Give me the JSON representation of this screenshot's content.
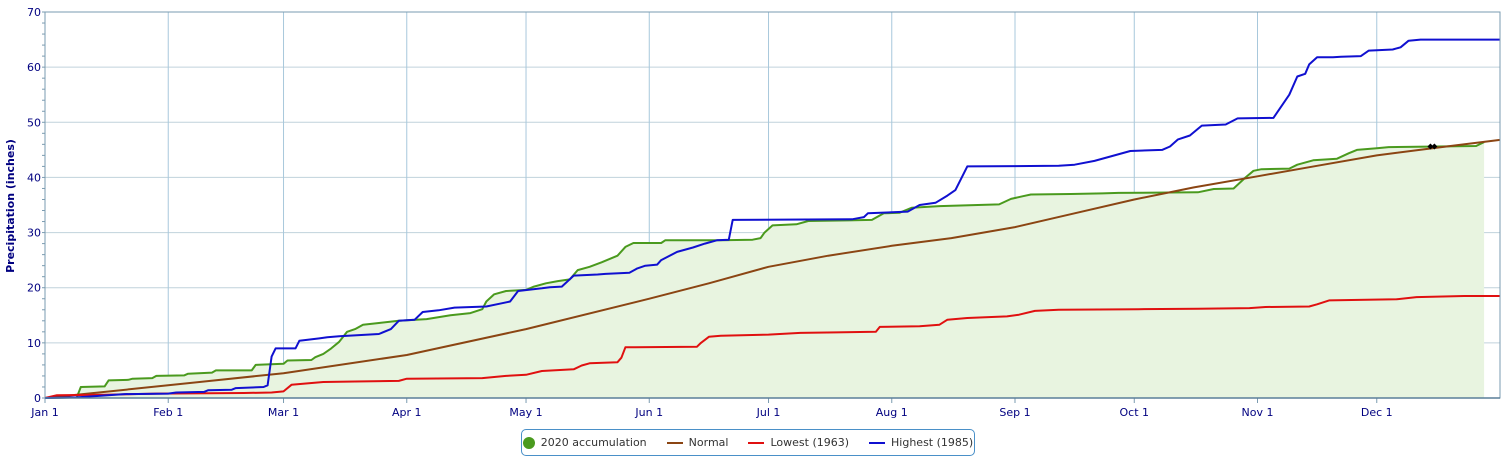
{
  "chart_data": {
    "type": "line",
    "title": "",
    "ylabel": "Precipitation (inches)",
    "xlabel": "",
    "ylim": [
      0,
      70
    ],
    "yticks": [
      0,
      10,
      20,
      30,
      40,
      50,
      60,
      70
    ],
    "x_day_range": [
      0,
      366
    ],
    "xticks": [
      {
        "label": "Jan 1",
        "day": 0
      },
      {
        "label": "Feb 1",
        "day": 31
      },
      {
        "label": "Mar 1",
        "day": 60
      },
      {
        "label": "Apr 1",
        "day": 91
      },
      {
        "label": "May 1",
        "day": 121
      },
      {
        "label": "Jun 1",
        "day": 152
      },
      {
        "label": "Jul 1",
        "day": 182
      },
      {
        "label": "Aug 1",
        "day": 213
      },
      {
        "label": "Sep 1",
        "day": 244
      },
      {
        "label": "Oct 1",
        "day": 274
      },
      {
        "label": "Nov 1",
        "day": 305
      },
      {
        "label": "Dec 1",
        "day": 335
      }
    ],
    "grid": true,
    "legend_position": "bottom-center",
    "series": [
      {
        "name": "2020 accumulation",
        "color": "#4a9a1e",
        "fill": "#e8f4e0",
        "marker": "dot",
        "points": [
          [
            0,
            0
          ],
          [
            8,
            0.1
          ],
          [
            9,
            2.0
          ],
          [
            15,
            2.1
          ],
          [
            16,
            3.2
          ],
          [
            21,
            3.3
          ],
          [
            22,
            3.5
          ],
          [
            27,
            3.6
          ],
          [
            28,
            4.0
          ],
          [
            35,
            4.1
          ],
          [
            36,
            4.4
          ],
          [
            42,
            4.6
          ],
          [
            43,
            5.0
          ],
          [
            52,
            5.0
          ],
          [
            53,
            6.0
          ],
          [
            60,
            6.2
          ],
          [
            61,
            6.8
          ],
          [
            67,
            6.9
          ],
          [
            68,
            7.4
          ],
          [
            70,
            8.0
          ],
          [
            72,
            9.0
          ],
          [
            74,
            10.2
          ],
          [
            76,
            12.0
          ],
          [
            78,
            12.5
          ],
          [
            80,
            13.3
          ],
          [
            84,
            13.6
          ],
          [
            89,
            14.0
          ],
          [
            96,
            14.3
          ],
          [
            102,
            15.0
          ],
          [
            107,
            15.4
          ],
          [
            110,
            16.1
          ],
          [
            111,
            17.5
          ],
          [
            113,
            18.8
          ],
          [
            116,
            19.4
          ],
          [
            121,
            19.6
          ],
          [
            123,
            20.2
          ],
          [
            126,
            20.8
          ],
          [
            129,
            21.2
          ],
          [
            132,
            21.5
          ],
          [
            134,
            23.2
          ],
          [
            137,
            23.8
          ],
          [
            140,
            24.6
          ],
          [
            144,
            25.8
          ],
          [
            146,
            27.4
          ],
          [
            148,
            28.1
          ],
          [
            155,
            28.1
          ],
          [
            156,
            28.6
          ],
          [
            170,
            28.6
          ],
          [
            178,
            28.7
          ],
          [
            180,
            29.0
          ],
          [
            181,
            30.0
          ],
          [
            183,
            31.3
          ],
          [
            189,
            31.5
          ],
          [
            192,
            32.1
          ],
          [
            202,
            32.2
          ],
          [
            208,
            32.3
          ],
          [
            211,
            33.5
          ],
          [
            215,
            33.6
          ],
          [
            218,
            34.5
          ],
          [
            225,
            34.8
          ],
          [
            240,
            35.1
          ],
          [
            243,
            36.1
          ],
          [
            246,
            36.6
          ],
          [
            248,
            36.9
          ],
          [
            258,
            37.0
          ],
          [
            266,
            37.1
          ],
          [
            270,
            37.2
          ],
          [
            290,
            37.3
          ],
          [
            294,
            37.9
          ],
          [
            299,
            38.0
          ],
          [
            302,
            40.0
          ],
          [
            304,
            41.2
          ],
          [
            306,
            41.5
          ],
          [
            313,
            41.6
          ],
          [
            315,
            42.3
          ],
          [
            319,
            43.1
          ],
          [
            325,
            43.4
          ],
          [
            328,
            44.4
          ],
          [
            330,
            45.0
          ],
          [
            335,
            45.3
          ],
          [
            338,
            45.5
          ],
          [
            360,
            45.7
          ],
          [
            362,
            46.4
          ]
        ]
      },
      {
        "name": "Normal",
        "color": "#8b4513",
        "marker": "line",
        "points": [
          [
            0,
            0
          ],
          [
            31,
            2.3
          ],
          [
            60,
            4.5
          ],
          [
            91,
            7.8
          ],
          [
            121,
            12.5
          ],
          [
            152,
            18.0
          ],
          [
            167,
            20.8
          ],
          [
            182,
            23.8
          ],
          [
            197,
            25.8
          ],
          [
            213,
            27.6
          ],
          [
            228,
            29.0
          ],
          [
            244,
            31.0
          ],
          [
            259,
            33.5
          ],
          [
            274,
            36.0
          ],
          [
            289,
            38.2
          ],
          [
            305,
            40.2
          ],
          [
            320,
            42.1
          ],
          [
            335,
            44.0
          ],
          [
            350,
            45.4
          ],
          [
            366,
            46.8
          ]
        ]
      },
      {
        "name": "Lowest (1963)",
        "color": "#e01010",
        "marker": "line",
        "points": [
          [
            0,
            0
          ],
          [
            3,
            0.5
          ],
          [
            15,
            0.6
          ],
          [
            28,
            0.8
          ],
          [
            50,
            0.9
          ],
          [
            57,
            1.0
          ],
          [
            60,
            1.2
          ],
          [
            62,
            2.4
          ],
          [
            70,
            2.9
          ],
          [
            78,
            3.0
          ],
          [
            89,
            3.1
          ],
          [
            91,
            3.5
          ],
          [
            110,
            3.6
          ],
          [
            116,
            4.0
          ],
          [
            121,
            4.2
          ],
          [
            125,
            4.9
          ],
          [
            133,
            5.2
          ],
          [
            135,
            5.9
          ],
          [
            137,
            6.3
          ],
          [
            144,
            6.5
          ],
          [
            145,
            7.3
          ],
          [
            146,
            9.2
          ],
          [
            164,
            9.3
          ],
          [
            165,
            10.0
          ],
          [
            167,
            11.1
          ],
          [
            170,
            11.3
          ],
          [
            182,
            11.5
          ],
          [
            190,
            11.8
          ],
          [
            199,
            11.9
          ],
          [
            209,
            12.0
          ],
          [
            210,
            12.9
          ],
          [
            220,
            13.0
          ],
          [
            225,
            13.3
          ],
          [
            227,
            14.2
          ],
          [
            232,
            14.5
          ],
          [
            242,
            14.8
          ],
          [
            245,
            15.1
          ],
          [
            249,
            15.8
          ],
          [
            255,
            16.0
          ],
          [
            275,
            16.1
          ],
          [
            290,
            16.2
          ],
          [
            303,
            16.3
          ],
          [
            307,
            16.5
          ],
          [
            318,
            16.6
          ],
          [
            320,
            17.0
          ],
          [
            323,
            17.7
          ],
          [
            340,
            17.9
          ],
          [
            345,
            18.3
          ],
          [
            357,
            18.5
          ],
          [
            366,
            18.5
          ]
        ]
      },
      {
        "name": "Highest (1985)",
        "color": "#1010d0",
        "marker": "line",
        "points": [
          [
            0,
            0
          ],
          [
            8,
            0.1
          ],
          [
            20,
            0.7
          ],
          [
            31,
            0.8
          ],
          [
            33,
            1.0
          ],
          [
            40,
            1.1
          ],
          [
            41,
            1.4
          ],
          [
            47,
            1.5
          ],
          [
            48,
            1.8
          ],
          [
            55,
            2.0
          ],
          [
            56,
            2.3
          ],
          [
            57,
            7.5
          ],
          [
            58,
            9.0
          ],
          [
            60,
            9.0
          ],
          [
            63,
            9.0
          ],
          [
            64,
            10.4
          ],
          [
            69,
            10.8
          ],
          [
            71,
            11.0
          ],
          [
            74,
            11.2
          ],
          [
            84,
            11.6
          ],
          [
            87,
            12.5
          ],
          [
            89,
            14.0
          ],
          [
            93,
            14.2
          ],
          [
            95,
            15.6
          ],
          [
            99,
            15.9
          ],
          [
            103,
            16.4
          ],
          [
            111,
            16.6
          ],
          [
            115,
            17.2
          ],
          [
            117,
            17.5
          ],
          [
            119,
            19.4
          ],
          [
            125,
            19.9
          ],
          [
            127,
            20.1
          ],
          [
            130,
            20.2
          ],
          [
            133,
            22.2
          ],
          [
            139,
            22.4
          ],
          [
            141,
            22.5
          ],
          [
            147,
            22.7
          ],
          [
            149,
            23.5
          ],
          [
            151,
            24.0
          ],
          [
            154,
            24.2
          ],
          [
            155,
            25.0
          ],
          [
            159,
            26.5
          ],
          [
            163,
            27.3
          ],
          [
            166,
            28.0
          ],
          [
            169,
            28.6
          ],
          [
            172,
            28.7
          ],
          [
            173,
            32.3
          ],
          [
            203,
            32.4
          ],
          [
            206,
            32.8
          ],
          [
            207,
            33.5
          ],
          [
            217,
            33.8
          ],
          [
            220,
            35.0
          ],
          [
            224,
            35.4
          ],
          [
            227,
            36.7
          ],
          [
            229,
            37.7
          ],
          [
            232,
            42.0
          ],
          [
            255,
            42.1
          ],
          [
            259,
            42.3
          ],
          [
            264,
            43.0
          ],
          [
            268,
            43.8
          ],
          [
            273,
            44.8
          ],
          [
            281,
            45.0
          ],
          [
            283,
            45.6
          ],
          [
            285,
            46.9
          ],
          [
            288,
            47.6
          ],
          [
            291,
            49.4
          ],
          [
            297,
            49.6
          ],
          [
            300,
            50.7
          ],
          [
            309,
            50.8
          ],
          [
            313,
            55.0
          ],
          [
            315,
            58.3
          ],
          [
            317,
            58.8
          ],
          [
            318,
            60.5
          ],
          [
            320,
            61.8
          ],
          [
            324,
            61.8
          ],
          [
            326,
            61.9
          ],
          [
            331,
            62.0
          ],
          [
            333,
            63.0
          ],
          [
            339,
            63.2
          ],
          [
            341,
            63.6
          ],
          [
            343,
            64.8
          ],
          [
            346,
            65.0
          ],
          [
            366,
            65.0
          ]
        ]
      }
    ],
    "annotations": [
      {
        "type": "marker",
        "shape": "diamond",
        "day": 348.5,
        "value": 45.6,
        "color": "#000000"
      },
      {
        "type": "marker",
        "shape": "diamond",
        "day": 349.5,
        "value": 45.6,
        "color": "#000000"
      }
    ]
  },
  "colors": {
    "axis": "#000080",
    "grid_vertical": "#a8c8dc",
    "grid_horizontal": "#c0d2dc",
    "plot_border": "#7a9bb0",
    "legend_border": "#4a90c8"
  }
}
